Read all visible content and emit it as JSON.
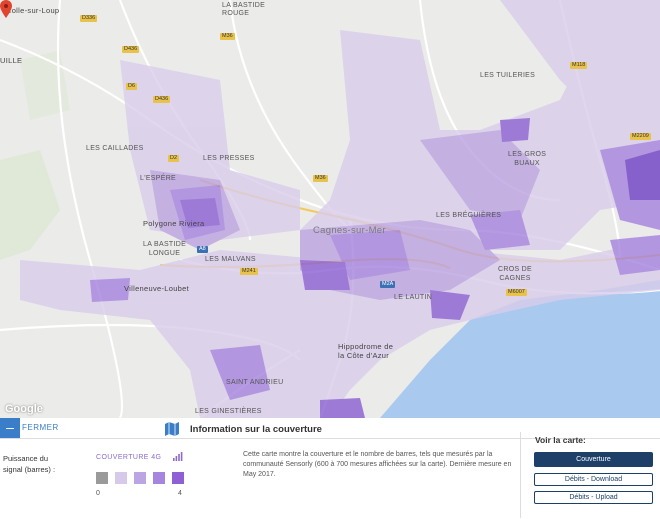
{
  "map": {
    "labels": {
      "colle": "Colle-sur-Loup",
      "bastide_rouge": "LA BASTIDE\nROUGE",
      "tuileries": "LES TUILERIES",
      "caillades": "LES CAILLADES",
      "presses": "LES PRESSES",
      "espere": "L'ESPÉRE",
      "polygone": "Polygone Riviera",
      "gros_buaux": "LES GROS\nBUAUX",
      "bregueres": "LES BRÉGUIÈRES",
      "cagnes": "Cagnes-sur-Mer",
      "bastide_longue": "LA BASTIDE\nLONGUE",
      "malvans": "LES MALVANS",
      "villeneuve": "Villeneuve-Loubet",
      "croix_cagnes": "CROS DE\nCAGNES",
      "lautin": "LE LAUTIN",
      "hippodrome": "Hippodrome de\nla Côte d'Azur",
      "saint_andrieu": "SAINT ANDRIEU",
      "ginestieres": "LES GINESTIÈRES",
      "uille": "UILLE",
      "google": "Google"
    },
    "roads": {
      "d336": "D336",
      "d436": "D436",
      "d6": "D6",
      "m36": "M36",
      "d436b": "D436",
      "m36b": "M36",
      "m118": "M118",
      "m2209": "M2209",
      "m241": "M241",
      "m6007": "M6007",
      "a8": "A8",
      "m2a": "M2A",
      "d2": "D2"
    },
    "colors": {
      "map_bg": "#ececec",
      "cov1": "#d9cdeb",
      "cov2": "#bba2e0",
      "cov3": "#a582dd",
      "cov4": "#8b5fd3",
      "cov5": "#6f3fc4",
      "sea": "#a9c9ef"
    },
    "marker": "location-pin-icon"
  },
  "panel": {
    "close_label": "FERMER",
    "close_icon": "minus-icon",
    "title": "Information sur la couverture",
    "title_icon": "map-icon",
    "signal_label": "Puissance du signal (barres) :",
    "coverage_label": "COUVERTURE 4G",
    "bars_icon": "signal-bars-icon",
    "legend_colors": [
      "#9a9a9a",
      "#d6c9ea",
      "#bca6e2",
      "#a585dd",
      "#8e60d4"
    ],
    "legend_min": "0",
    "legend_max": "4",
    "description": "Cette carte montre la couverture et le nombre de barres, tels que mesurés par la communauté Sensorly (600 à 700 mesures affichées sur la carte). Dernière mesure en May 2017.",
    "voir": "Voir la carte:",
    "buttons": {
      "coverage": "Couverture",
      "download": "Débits - Download",
      "upload": "Débits - Upload"
    }
  }
}
